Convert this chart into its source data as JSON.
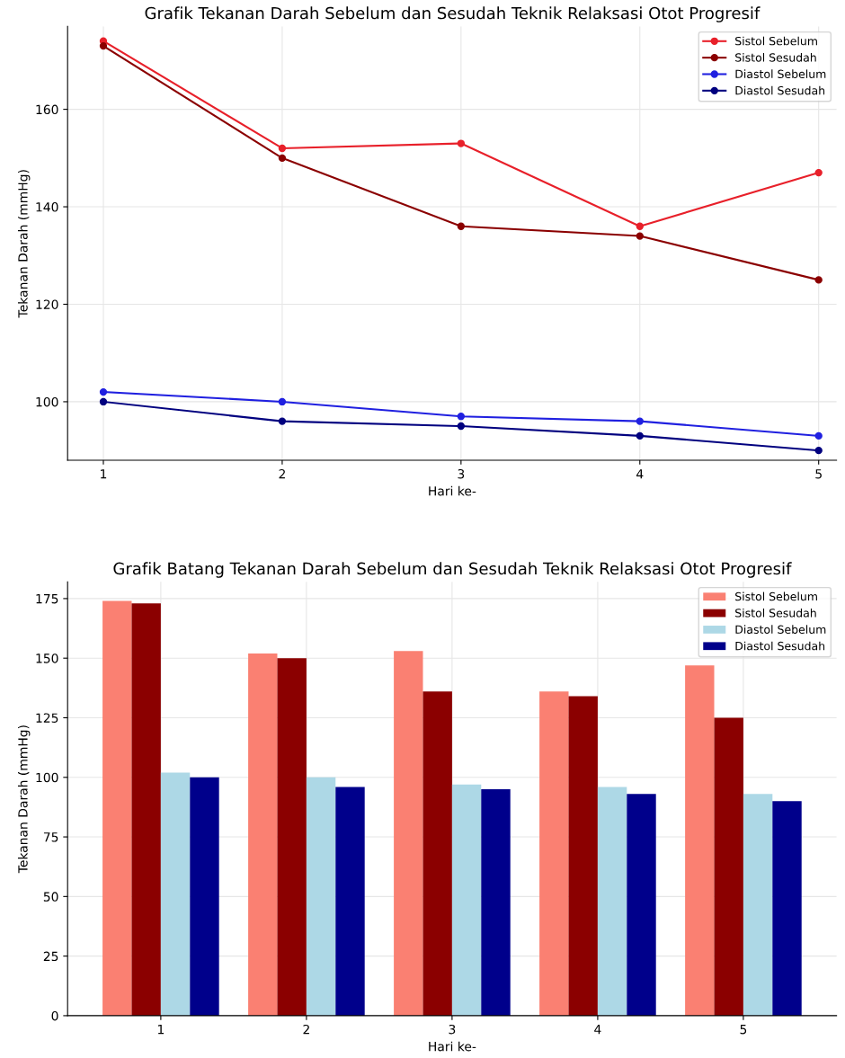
{
  "chart_data": [
    {
      "type": "line",
      "title": "Grafik Tekanan Darah Sebelum dan Sesudah Teknik Relaksasi Otot Progresif",
      "xlabel": "Hari ke-",
      "ylabel": "Tekanan Darah (mmHg)",
      "x": [
        1,
        2,
        3,
        4,
        5
      ],
      "xlim": [
        0.8,
        5.1
      ],
      "xticks": [
        1,
        2,
        3,
        4,
        5
      ],
      "ylim": [
        88,
        177
      ],
      "yticks": [
        100,
        120,
        140,
        160
      ],
      "series": [
        {
          "name": "Sistol Sebelum",
          "color": "#e8202a",
          "values": [
            174,
            152,
            153,
            136,
            147
          ]
        },
        {
          "name": "Sistol Sesudah",
          "color": "#8b0000",
          "values": [
            173,
            150,
            136,
            134,
            125
          ]
        },
        {
          "name": "Diastol Sebelum",
          "color": "#2020e0",
          "values": [
            102,
            100,
            97,
            96,
            93
          ]
        },
        {
          "name": "Diastol Sesudah",
          "color": "#00007f",
          "values": [
            100,
            96,
            95,
            93,
            90
          ]
        }
      ],
      "marker": "circle",
      "grid": true,
      "legend": "top right"
    },
    {
      "type": "bar",
      "title": "Grafik Batang Tekanan Darah Sebelum dan Sesudah Teknik Relaksasi Otot Progresif",
      "xlabel": "Hari ke-",
      "ylabel": "Tekanan Darah (mmHg)",
      "categories": [
        "1",
        "2",
        "3",
        "4",
        "5"
      ],
      "ylim": [
        0,
        182
      ],
      "yticks": [
        0,
        25,
        50,
        75,
        100,
        125,
        150,
        175
      ],
      "series": [
        {
          "name": "Sistol Sebelum",
          "color": "#fa8072",
          "values": [
            174,
            152,
            153,
            136,
            147
          ]
        },
        {
          "name": "Sistol Sesudah",
          "color": "#8b0000",
          "values": [
            173,
            150,
            136,
            134,
            125
          ]
        },
        {
          "name": "Diastol Sebelum",
          "color": "#add8e6",
          "values": [
            102,
            100,
            97,
            96,
            93
          ]
        },
        {
          "name": "Diastol Sesudah",
          "color": "#00008b",
          "values": [
            100,
            96,
            95,
            93,
            90
          ]
        }
      ],
      "grid": true,
      "legend": "top right"
    }
  ]
}
